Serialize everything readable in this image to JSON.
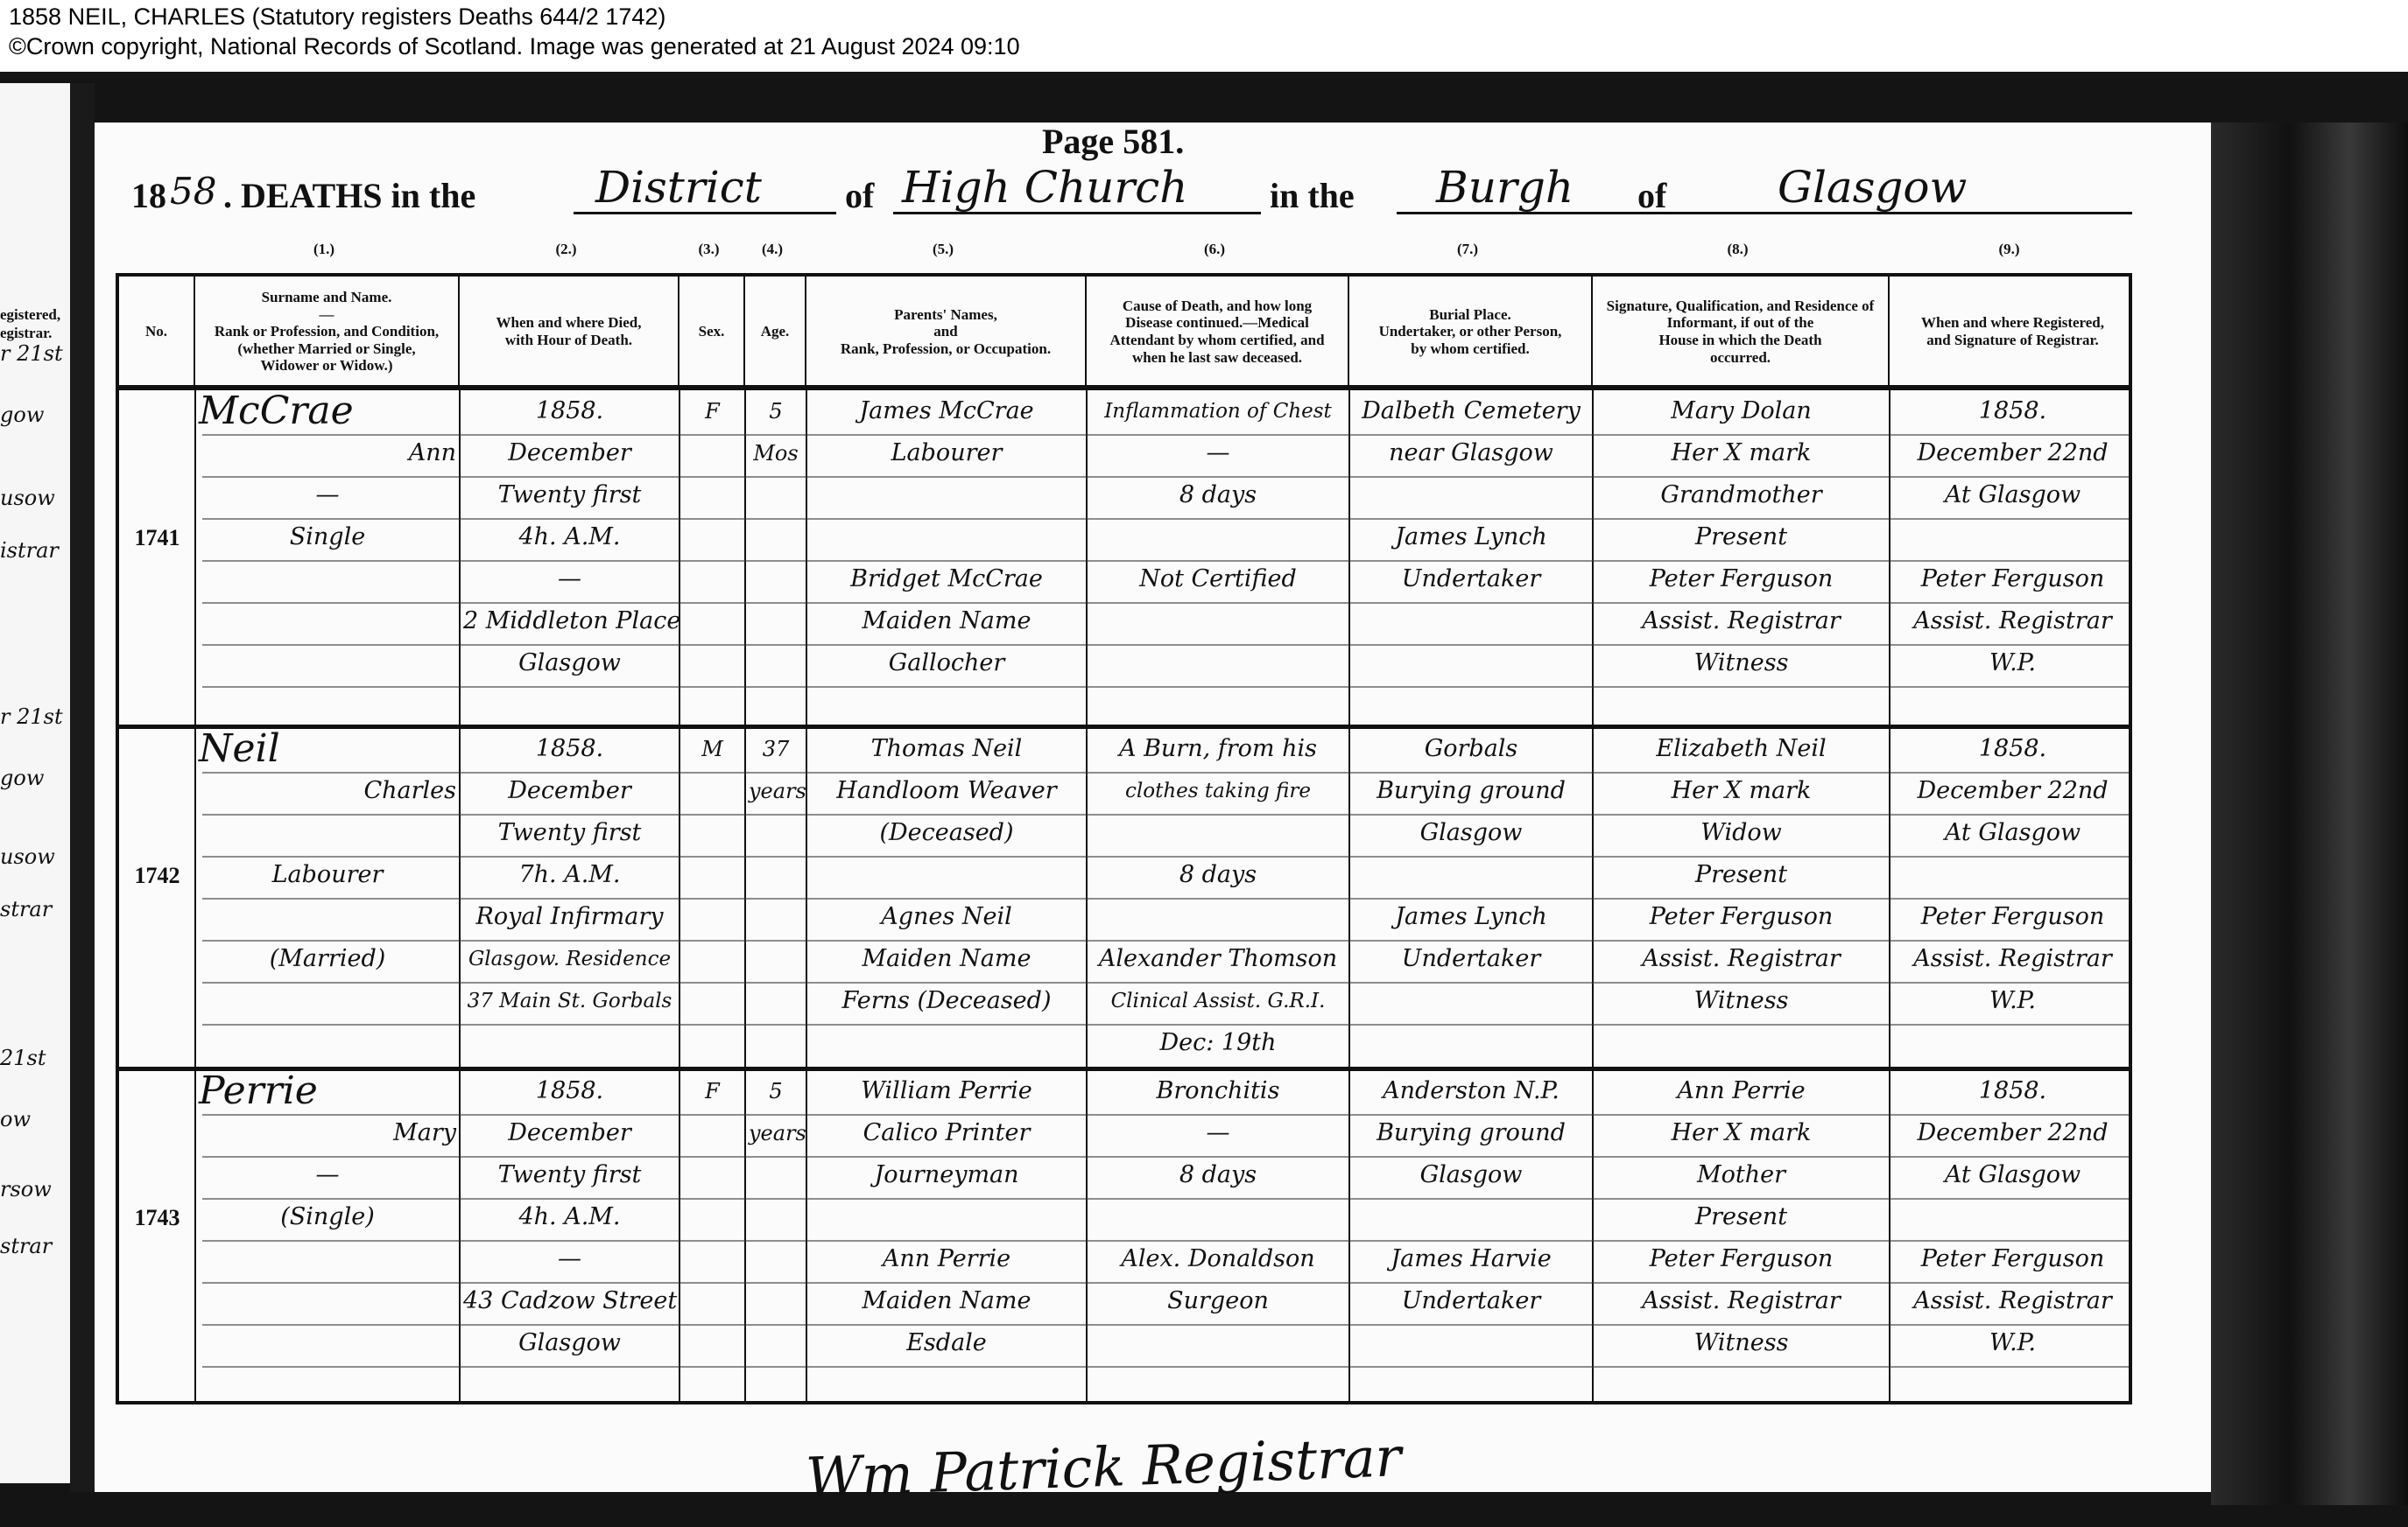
{
  "caption": {
    "title": "1858 NEIL, CHARLES (Statutory registers Deaths 644/2 1742)",
    "copyright": "©Crown copyright, National Records of Scotland. Image was generated at 21 August 2024 09:10"
  },
  "left_strip": {
    "header_lines": [
      "egistered,",
      "egistrar."
    ],
    "fragments": [
      "r 21st",
      "gow",
      "usow",
      "istrar",
      "r 21st",
      "gow",
      "usow",
      "strar",
      "21st",
      "ow",
      "rsow",
      "strar"
    ]
  },
  "page": {
    "page_number": "Page 581.",
    "year_printed": "18",
    "year_written": "58",
    "deaths_in_the": ". DEATHS in the",
    "district_written": "District",
    "of_1": "of",
    "place_written": "High Church",
    "in_the": "in the",
    "burgh_written": "Burgh",
    "of_2": "of",
    "town_written": "Glasgow"
  },
  "columns": [
    {
      "num": "",
      "header": "No."
    },
    {
      "num": "(1.)",
      "header": "Surname and Name.\n—\nRank or Profession, and Condition,\n(whether Married or Single,\nWidower or Widow.)"
    },
    {
      "num": "(2.)",
      "header": "When and where Died,\nwith Hour of Death."
    },
    {
      "num": "(3.)",
      "header": "Sex."
    },
    {
      "num": "(4.)",
      "header": "Age."
    },
    {
      "num": "(5.)",
      "header": "Parents' Names,\nand\nRank, Profession, or Occupation."
    },
    {
      "num": "(6.)",
      "header": "Cause of Death, and how long\nDisease continued.—Medical\nAttendant by whom certified, and\nwhen he last saw deceased."
    },
    {
      "num": "(7.)",
      "header": "Burial Place.\nUndertaker, or other Person,\nby whom certified."
    },
    {
      "num": "(8.)",
      "header": "Signature, Qualification, and Residence of Informant, if out of the\nHouse in which the Death\noccurred."
    },
    {
      "num": "(9.)",
      "header": "When and where Registered,\nand Signature of Registrar."
    }
  ],
  "entries": [
    {
      "no": "1741",
      "name": [
        "McCrae",
        "Ann",
        "—",
        "Single",
        "",
        "",
        "",
        ""
      ],
      "died": [
        "1858.",
        "December",
        "Twenty first",
        "4h. A.M.",
        "—",
        "2 Middleton Place",
        "Glasgow",
        ""
      ],
      "sex": [
        "F",
        "",
        "",
        "",
        "",
        "",
        "",
        ""
      ],
      "age": [
        "5",
        "Mos",
        "",
        "",
        "",
        "",
        "",
        ""
      ],
      "parents": [
        "James McCrae",
        "Labourer",
        "",
        "",
        "Bridget McCrae",
        "Maiden Name",
        "Gallocher",
        ""
      ],
      "cause": [
        "Inflammation of Chest",
        "—",
        "8 days",
        "",
        "Not Certified",
        "",
        "",
        ""
      ],
      "burial": [
        "Dalbeth Cemetery",
        "near Glasgow",
        "",
        "James Lynch",
        "Undertaker",
        "",
        "",
        ""
      ],
      "informant": [
        "Mary Dolan",
        "Her X mark",
        "Grandmother",
        "Present",
        "Peter Ferguson",
        "Assist. Registrar",
        "Witness",
        ""
      ],
      "registered": [
        "1858.",
        "December 22nd",
        "At Glasgow",
        "",
        "Peter Ferguson",
        "Assist. Registrar",
        "W.P.",
        ""
      ]
    },
    {
      "no": "1742",
      "name": [
        "Neil",
        "Charles",
        "",
        "Labourer",
        "",
        "(Married)",
        "",
        ""
      ],
      "died": [
        "1858.",
        "December",
        "Twenty first",
        "7h. A.M.",
        "Royal Infirmary",
        "Glasgow. Residence",
        "37 Main St. Gorbals",
        ""
      ],
      "sex": [
        "M",
        "",
        "",
        "",
        "",
        "",
        "",
        ""
      ],
      "age": [
        "37",
        "years",
        "",
        "",
        "",
        "",
        "",
        ""
      ],
      "parents": [
        "Thomas Neil",
        "Handloom Weaver",
        "(Deceased)",
        "",
        "Agnes Neil",
        "Maiden Name",
        "Ferns (Deceased)",
        ""
      ],
      "cause": [
        "A Burn, from his",
        "clothes taking fire",
        "",
        "8 days",
        "",
        "Alexander Thomson",
        "Clinical Assist. G.R.I.",
        "Dec: 19th"
      ],
      "burial": [
        "Gorbals",
        "Burying ground",
        "Glasgow",
        "",
        "James Lynch",
        "Undertaker",
        "",
        ""
      ],
      "informant": [
        "Elizabeth Neil",
        "Her X mark",
        "Widow",
        "Present",
        "Peter Ferguson",
        "Assist. Registrar",
        "Witness",
        ""
      ],
      "registered": [
        "1858.",
        "December 22nd",
        "At Glasgow",
        "",
        "Peter Ferguson",
        "Assist. Registrar",
        "W.P.",
        ""
      ]
    },
    {
      "no": "1743",
      "name": [
        "Perrie",
        "Mary",
        "—",
        "(Single)",
        "",
        "",
        "",
        ""
      ],
      "died": [
        "1858.",
        "December",
        "Twenty first",
        "4h. A.M.",
        "—",
        "43 Cadzow Street",
        "Glasgow",
        ""
      ],
      "sex": [
        "F",
        "",
        "",
        "",
        "",
        "",
        "",
        ""
      ],
      "age": [
        "5",
        "years",
        "",
        "",
        "",
        "",
        "",
        ""
      ],
      "parents": [
        "William Perrie",
        "Calico Printer",
        "Journeyman",
        "",
        "Ann Perrie",
        "Maiden Name",
        "Esdale",
        ""
      ],
      "cause": [
        "Bronchitis",
        "—",
        "8 days",
        "",
        "Alex. Donaldson",
        "Surgeon",
        "",
        ""
      ],
      "burial": [
        "Anderston N.P.",
        "Burying ground",
        "Glasgow",
        "",
        "James Harvie",
        "Undertaker",
        "",
        ""
      ],
      "informant": [
        "Ann Perrie",
        "Her X mark",
        "Mother",
        "Present",
        "Peter Ferguson",
        "Assist. Registrar",
        "Witness",
        ""
      ],
      "registered": [
        "1858.",
        "December 22nd",
        "At Glasgow",
        "",
        "Peter Ferguson",
        "Assist. Registrar",
        "W.P.",
        ""
      ]
    }
  ],
  "signature": "Wm Patrick Registrar"
}
